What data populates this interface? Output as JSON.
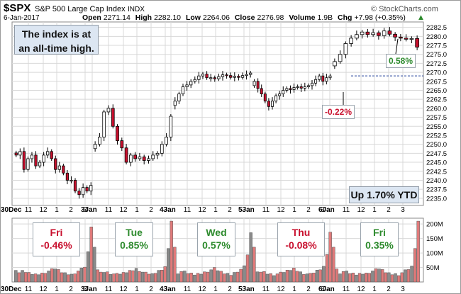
{
  "header": {
    "symbol": "$SPX",
    "name": "S&P 500 Large Cap Index",
    "exchange": "INDX",
    "date": "6-Jan-2017",
    "open_label": "Open",
    "open": "2271.14",
    "high_label": "High",
    "high": "2282.10",
    "low_label": "Low",
    "low": "2264.06",
    "close_label": "Close",
    "close": "2276.98",
    "volume_label": "Volume",
    "volume": "1.9B",
    "chg_label": "Chg",
    "chg": "+7.98 (+0.35%)",
    "chg_arrow": "▲",
    "brand": "© StockCharts.com"
  },
  "annotations": {
    "headline": "The index is at an all-time high.",
    "ytd": "Up 1.70% YTD",
    "peak_pct": "0.58%",
    "dip_pct": "-0.22%"
  },
  "day_labels": [
    {
      "day": "Fri",
      "pct": "-0.46%"
    },
    {
      "day": "Tue",
      "pct": "0.85%"
    },
    {
      "day": "Wed",
      "pct": "0.57%"
    },
    {
      "day": "Thu",
      "pct": "-0.08%"
    },
    {
      "day": "Fri",
      "pct": "0.35%"
    }
  ],
  "colors": {
    "up": "#000000",
    "down": "#c8102e",
    "grid": "#d8d8d8",
    "pos_text": "#2e8b2e",
    "neg_text": "#c8102e",
    "vol_up": "#8a8a8a",
    "vol_down": "#e07a7a",
    "dashed": "#1f3f99"
  },
  "chart_data": [
    {
      "type": "candlestick",
      "title": "$SPX S&P 500 Large Cap Index INDX",
      "ylim": [
        2233,
        2284
      ],
      "y_ticks": [
        "2235.0",
        "2237.5",
        "2240.0",
        "2242.5",
        "2245.0",
        "2247.5",
        "2250.0",
        "2252.5",
        "2255.0",
        "2257.5",
        "2260.0",
        "2262.5",
        "2265.0",
        "2267.5",
        "2270.0",
        "2272.5",
        "2275.0",
        "2277.5",
        "2280.0",
        "2282.5"
      ],
      "x_ticks": [
        "30Dec",
        "11",
        "12",
        "1",
        "2",
        "3",
        "3Jan",
        "11",
        "12",
        "1",
        "2",
        "3",
        "4Jan",
        "11",
        "12",
        "1",
        "2",
        "3",
        "5Jan",
        "11",
        "12",
        "1",
        "2",
        "3",
        "6Jan",
        "11",
        "12",
        "1",
        "2",
        "3"
      ],
      "reference_line": 2269.0,
      "close_segments": [
        [
          2247,
          2248,
          2243,
          2246,
          2247,
          2244,
          2245,
          2247,
          2248,
          2246,
          2243,
          2244,
          2242,
          2240,
          2240,
          2237,
          2236,
          2238,
          2237,
          2238.6
        ],
        [
          2250,
          2252,
          2259,
          2260,
          2255,
          2251,
          2249,
          2245,
          2247,
          2246,
          2246.5,
          2245.5,
          2246,
          2247,
          2247.5,
          2250,
          2252,
          2257.8
        ],
        [
          2262,
          2264,
          2266,
          2266.5,
          2267.5,
          2268,
          2269,
          2269.5,
          2268.5,
          2268.5,
          2268.2,
          2268.8,
          2269.3,
          2269.1,
          2268.6,
          2268.9,
          2268.6,
          2269.1,
          2269.4,
          2269.8
        ],
        [
          2267.5,
          2265.5,
          2264,
          2262,
          2260.5,
          2262,
          2263.5,
          2264,
          2265,
          2265.5,
          2265.2,
          2265.8,
          2266,
          2265.6,
          2266,
          2266.3,
          2267,
          2268,
          2269,
          2267.5,
          2268.5,
          2269
        ],
        [
          2273,
          2275,
          2278,
          2279.5,
          2280.5,
          2281.2,
          2280.5,
          2281,
          2280.2,
          2281.5,
          2280.6,
          2279.8,
          2279.5,
          2279.2,
          2279.4,
          2277
        ]
      ]
    },
    {
      "type": "bar",
      "title": "Volume",
      "ylim": [
        0,
        220
      ],
      "y_ticks": [
        "50M",
        "100M",
        "150M",
        "200M"
      ],
      "spikes": [
        190,
        210,
        170,
        172,
        210
      ]
    }
  ]
}
